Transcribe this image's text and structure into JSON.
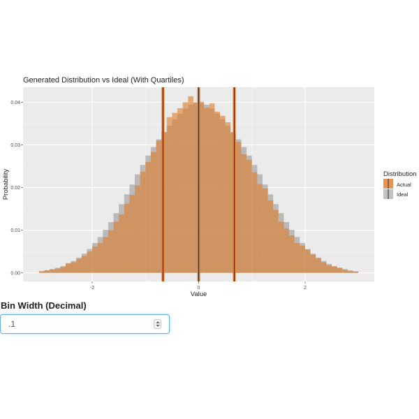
{
  "chart_data": {
    "type": "bar",
    "title": "Generated Distribution vs Ideal (With Quartiles)",
    "xlabel": "Value",
    "ylabel": "Probability",
    "xlim": [
      -3.3,
      3.3
    ],
    "ylim": [
      -0.002,
      0.0435
    ],
    "x_ticks": [
      -2,
      0,
      2
    ],
    "x_tick_labels": [
      "-2",
      "0",
      "2"
    ],
    "y_ticks": [
      0.0,
      0.01,
      0.02,
      0.03,
      0.04
    ],
    "y_tick_labels": [
      "0.00",
      "0.01",
      "0.02",
      "0.03",
      "0.04"
    ],
    "grid": true,
    "bin_width": 0.1,
    "bin_starts": [
      -3.0,
      -2.9,
      -2.8,
      -2.7,
      -2.6,
      -2.5,
      -2.4,
      -2.3,
      -2.2,
      -2.1,
      -2.0,
      -1.9,
      -1.8,
      -1.7,
      -1.6,
      -1.5,
      -1.4,
      -1.3,
      -1.2,
      -1.1,
      -1.0,
      -0.9,
      -0.8,
      -0.7,
      -0.6,
      -0.5,
      -0.4,
      -0.3,
      -0.2,
      -0.1,
      0.0,
      0.1,
      0.2,
      0.3,
      0.4,
      0.5,
      0.6,
      0.7,
      0.8,
      0.9,
      1.0,
      1.1,
      1.2,
      1.3,
      1.4,
      1.5,
      1.6,
      1.7,
      1.8,
      1.9,
      2.0,
      2.1,
      2.2,
      2.3,
      2.4,
      2.5,
      2.6,
      2.7,
      2.8,
      2.9
    ],
    "series": [
      {
        "name": "Actual",
        "color": "#e07b2a",
        "values": [
          0.0004,
          0.0006,
          0.0008,
          0.001,
          0.0014,
          0.0023,
          0.0025,
          0.0033,
          0.004,
          0.005,
          0.0062,
          0.007,
          0.0084,
          0.01,
          0.012,
          0.0137,
          0.0162,
          0.0183,
          0.0205,
          0.0237,
          0.026,
          0.0283,
          0.031,
          0.033,
          0.0365,
          0.0375,
          0.0386,
          0.04,
          0.0414,
          0.04,
          0.0401,
          0.0387,
          0.0397,
          0.0378,
          0.0368,
          0.0353,
          0.0329,
          0.0307,
          0.0278,
          0.0265,
          0.0236,
          0.0208,
          0.0198,
          0.017,
          0.0148,
          0.012,
          0.0104,
          0.0088,
          0.007,
          0.0064,
          0.0054,
          0.0043,
          0.0034,
          0.0025,
          0.0018,
          0.0015,
          0.0012,
          0.0007,
          0.0004,
          0.0003
        ]
      },
      {
        "name": "Ideal",
        "color": "#999999",
        "values": [
          0.0004,
          0.0006,
          0.0009,
          0.0012,
          0.0016,
          0.0021,
          0.0028,
          0.0036,
          0.0045,
          0.0056,
          0.007,
          0.0084,
          0.0101,
          0.0119,
          0.014,
          0.0161,
          0.0184,
          0.0207,
          0.0231,
          0.0253,
          0.0275,
          0.0295,
          0.0313,
          0.033,
          0.0345,
          0.036,
          0.0373,
          0.0385,
          0.0394,
          0.0398,
          0.0398,
          0.0394,
          0.0385,
          0.0373,
          0.036,
          0.0345,
          0.033,
          0.0313,
          0.0295,
          0.0275,
          0.0253,
          0.0231,
          0.0207,
          0.0184,
          0.0161,
          0.014,
          0.0119,
          0.0101,
          0.0084,
          0.007,
          0.0056,
          0.0045,
          0.0036,
          0.0028,
          0.0021,
          0.0016,
          0.0012,
          0.0009,
          0.0006,
          0.0004
        ]
      }
    ],
    "quartiles": [
      -0.67,
      0.0,
      0.67
    ],
    "quartile_color": "#e07b2a",
    "legend": {
      "title": "Distribution",
      "position": "right",
      "entries": [
        "Actual",
        "Ideal"
      ]
    },
    "panel_background": "#ebebeb"
  },
  "controls": {
    "bin_width_label": "Bin Width (Decimal)",
    "bin_width_value": ".1"
  }
}
